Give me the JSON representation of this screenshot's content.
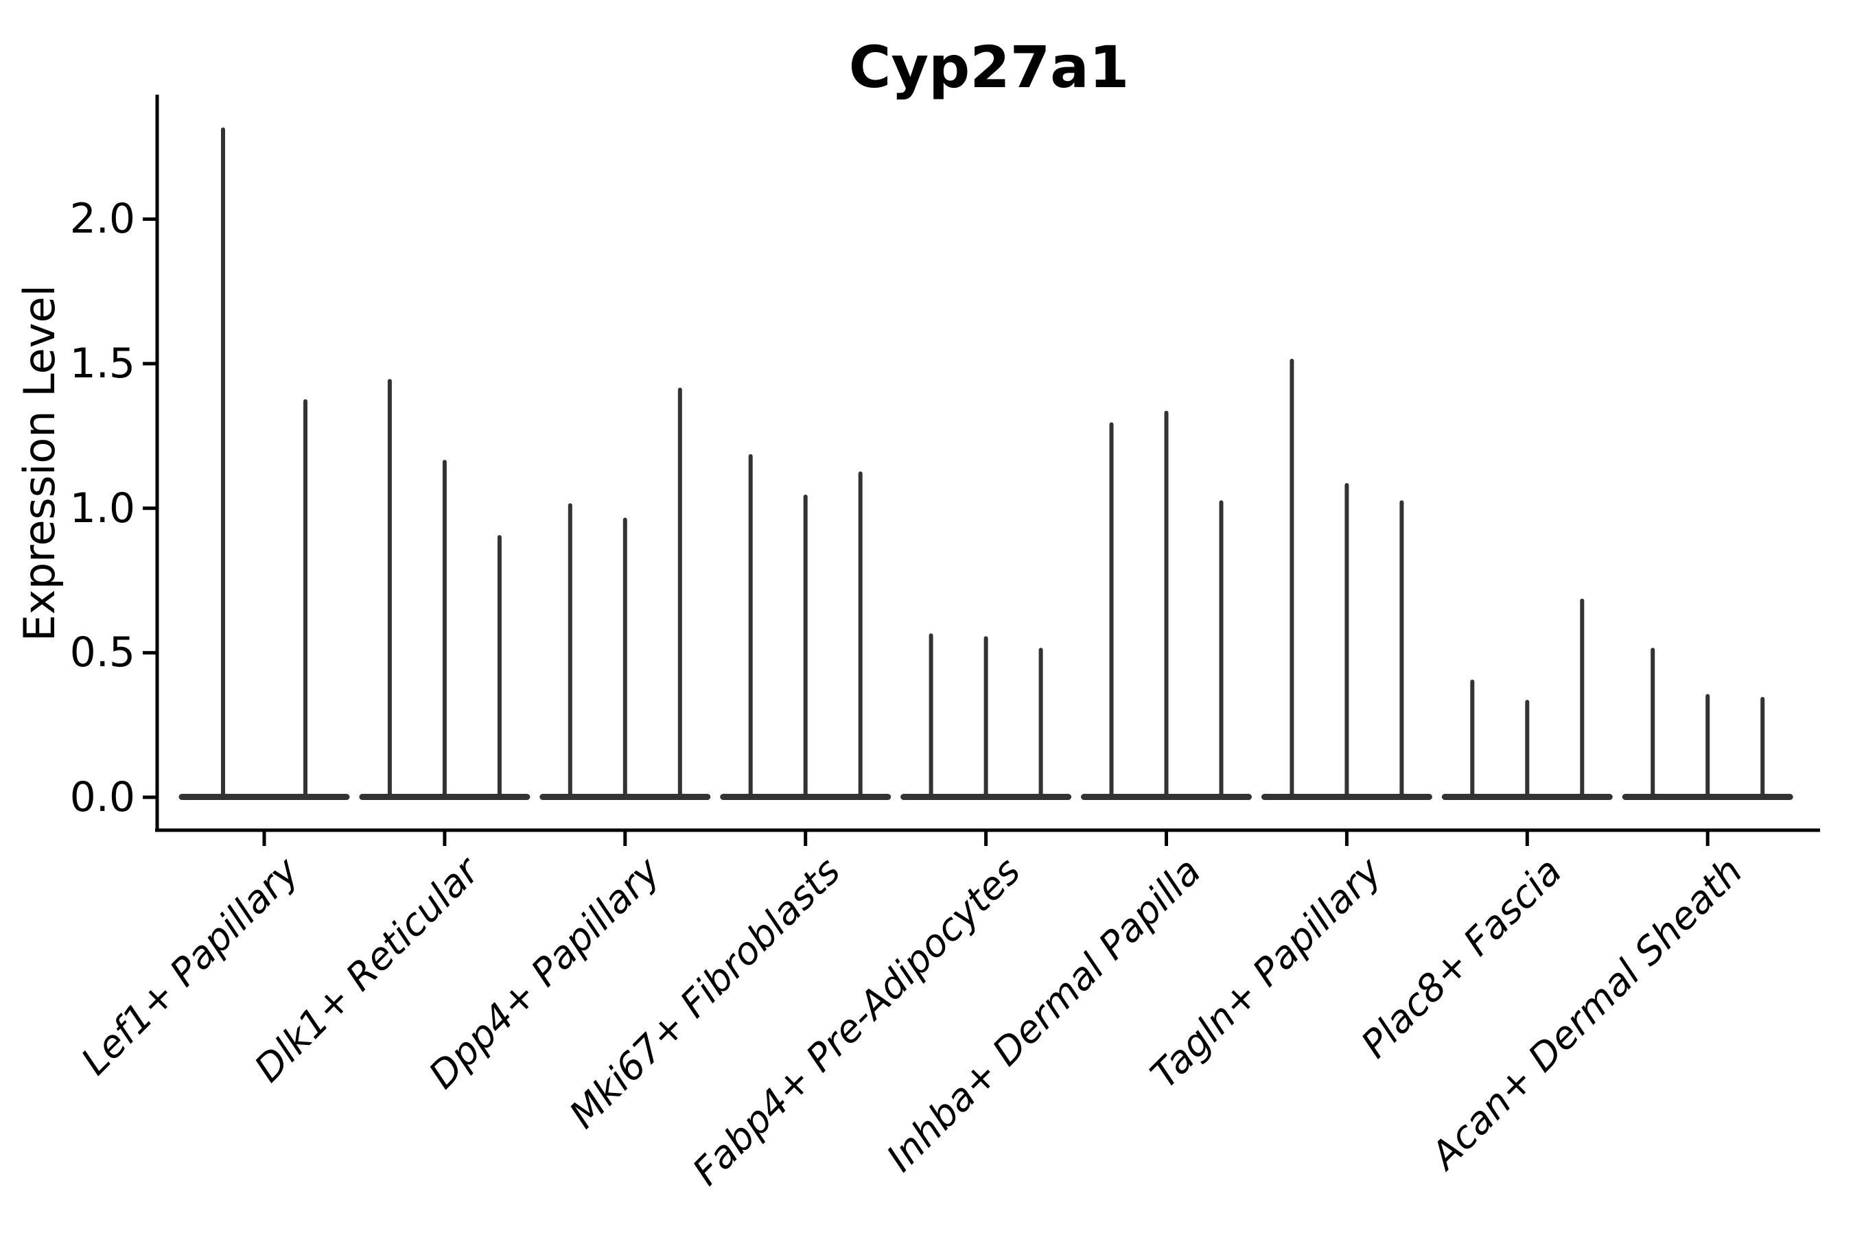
{
  "chart_data": {
    "type": "violin",
    "title": "Cyp27a1",
    "xlabel": "",
    "ylabel": "Expression Level",
    "yticks": [
      0.0,
      0.5,
      1.0,
      1.5,
      2.0
    ],
    "ylim": [
      0,
      2.43
    ],
    "grid": false,
    "legend": null,
    "style_note": "Seurat-style stacked violin: each violin collapses to a wide flat base at 0 with a thin vertical spike up to the max expression value",
    "categories": [
      "Lef1+ Papillary",
      "Dlk1+ Reticular",
      "Dpp4+ Papillary",
      "Mki67+ Fibroblasts",
      "Fabp4+ Pre-Adipocytes",
      "Inhba+ Dermal Papilla",
      "Tagln+ Papillary",
      "Plac8+ Fascia",
      "Acan+ Dermal Sheath"
    ],
    "groups": [
      {
        "label": "Lef1+ Papillary",
        "spikes": [
          2.31,
          1.37
        ]
      },
      {
        "label": "Dlk1+ Reticular",
        "spikes": [
          1.44,
          1.16,
          0.9
        ]
      },
      {
        "label": "Dpp4+ Papillary",
        "spikes": [
          1.01,
          0.96,
          1.41
        ]
      },
      {
        "label": "Mki67+ Fibroblasts",
        "spikes": [
          1.18,
          1.04,
          1.12
        ]
      },
      {
        "label": "Fabp4+ Pre-Adipocytes",
        "spikes": [
          0.56,
          0.55,
          0.51
        ]
      },
      {
        "label": "Inhba+ Dermal Papilla",
        "spikes": [
          1.29,
          1.33,
          1.02
        ]
      },
      {
        "label": "Tagln+ Papillary",
        "spikes": [
          1.51,
          1.08,
          1.02
        ]
      },
      {
        "label": "Plac8+ Fascia",
        "spikes": [
          0.4,
          0.33,
          0.68
        ]
      },
      {
        "label": "Acan+ Dermal Sheath",
        "spikes": [
          0.51,
          0.35,
          0.34
        ]
      }
    ]
  },
  "colors": {
    "violin": "#333333",
    "axis": "#000000",
    "text": "#000000",
    "background": "#ffffff"
  }
}
